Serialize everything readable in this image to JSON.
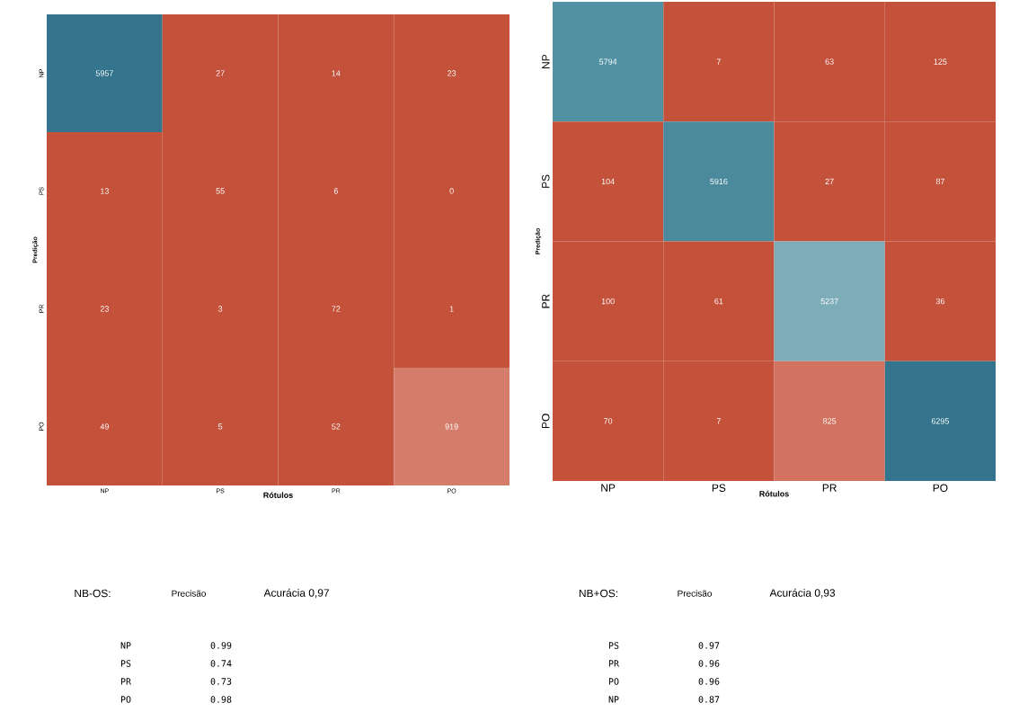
{
  "chart_data": [
    {
      "type": "heatmap",
      "xlabel": "Rótulos",
      "ylabel": "Predição",
      "categories": [
        "NP",
        "PS",
        "PR",
        "PO"
      ],
      "y_categories": [
        "NP",
        "PS",
        "PR",
        "PO"
      ],
      "cells": [
        [
          5957,
          27,
          14,
          23
        ],
        [
          13,
          55,
          6,
          0
        ],
        [
          23,
          3,
          72,
          1
        ],
        [
          49,
          5,
          52,
          919
        ]
      ],
      "data_labels": true,
      "annotations": [
        "NB-OS:",
        "Precisão",
        "Acurácia 0,97",
        "NP",
        "0.99",
        "PS",
        "0.74",
        "PR",
        "0.73",
        "PO",
        "0.98"
      ]
    },
    {
      "type": "heatmap",
      "xlabel": "Rótulos",
      "ylabel": "Predição",
      "categories": [
        "NP",
        "PS",
        "PR",
        "PO"
      ],
      "y_categories": [
        "NP",
        "PS",
        "PR",
        "PO"
      ],
      "cells": [
        [
          5794,
          7,
          63,
          125
        ],
        [
          104,
          5916,
          27,
          87
        ],
        [
          100,
          61,
          5237,
          36
        ],
        [
          70,
          7,
          825,
          6295
        ]
      ],
      "data_labels": true,
      "annotations": [
        "NB+OS:",
        "Precisão",
        "Acurácia 0,93",
        "PS",
        "0.97",
        "PR",
        "0.96",
        "PO",
        "0.96",
        "NP",
        "0.87"
      ]
    }
  ]
}
